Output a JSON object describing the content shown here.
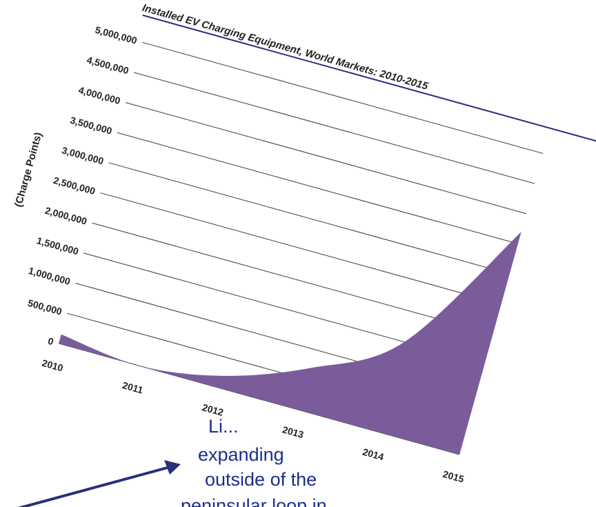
{
  "background_text": [
    "Li...",
    "expanding",
    "outside of the",
    "peninsular loop in"
  ],
  "colors": {
    "area_fill": "#7b5c9b",
    "title_rule": "#2a2f7a",
    "arrow": "#2a2f7a",
    "background_text": "#1d2e8c",
    "gridline": "#3a3a3a"
  },
  "chart_data": {
    "type": "area",
    "title": "Installed EV Charging Equipment, World Markets: 2010-2015",
    "xlabel": "",
    "ylabel": "(Charge Points)",
    "categories": [
      "2010",
      "2011",
      "2012",
      "2013",
      "2014",
      "2015"
    ],
    "series": [
      {
        "values": [
          150000,
          0,
          200000,
          700000,
          1500000,
          3700000
        ]
      }
    ],
    "ylim": [
      0,
      5000000
    ],
    "ytick_labels": [
      "0",
      "500,000",
      "1,000,000",
      "1,500,000",
      "2,000,000",
      "2,500,000",
      "3,000,000",
      "3,500,000",
      "4,000,000",
      "4,500,000",
      "5,000,000"
    ],
    "grid": true,
    "legend": "none"
  }
}
